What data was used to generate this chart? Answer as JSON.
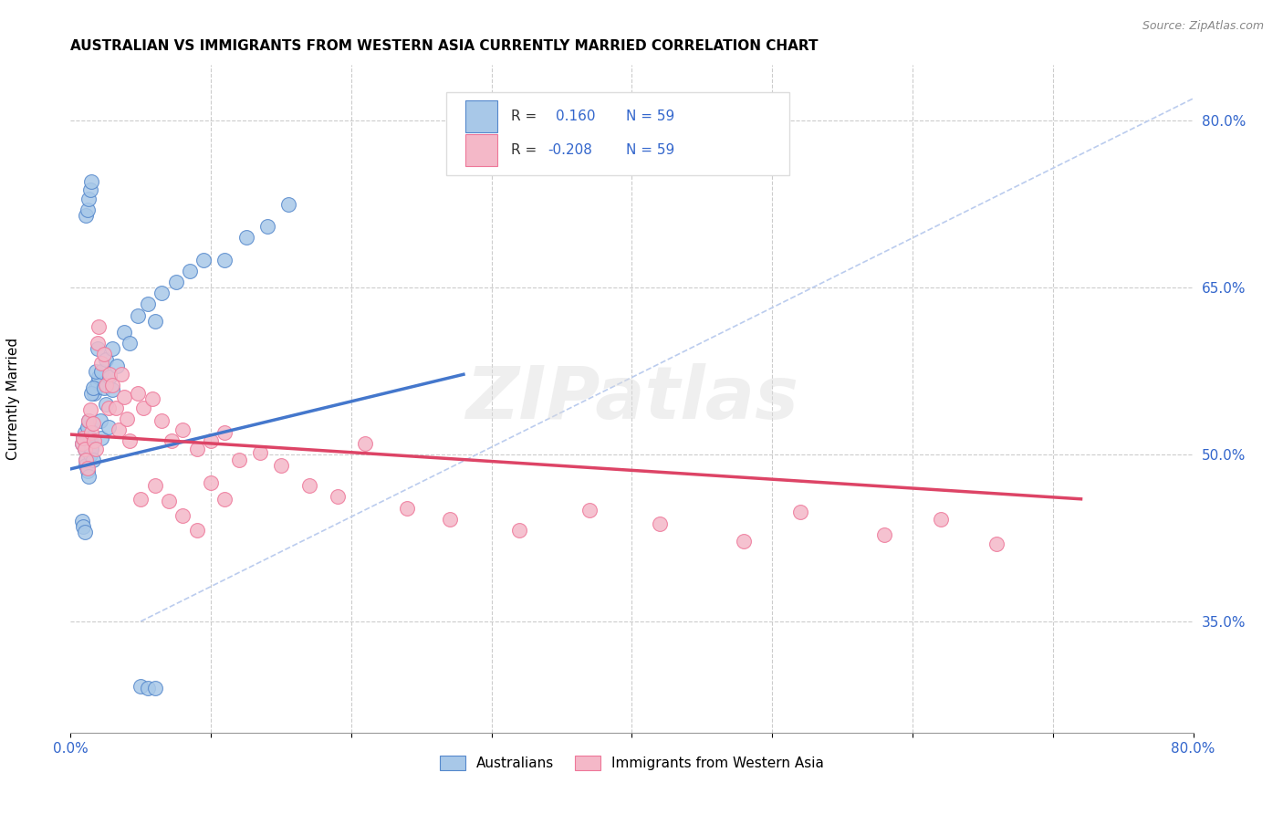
{
  "title": "AUSTRALIAN VS IMMIGRANTS FROM WESTERN ASIA CURRENTLY MARRIED CORRELATION CHART",
  "source": "Source: ZipAtlas.com",
  "ylabel": "Currently Married",
  "r_blue": 0.16,
  "r_pink": -0.208,
  "n": 59,
  "xlim": [
    0.0,
    0.8
  ],
  "ylim": [
    0.25,
    0.85
  ],
  "yticks": [
    0.35,
    0.5,
    0.65,
    0.8
  ],
  "xticks": [
    0.0,
    0.1,
    0.2,
    0.3,
    0.4,
    0.5,
    0.6,
    0.7,
    0.8
  ],
  "color_blue_fill": "#A8C8E8",
  "color_blue_edge": "#5588CC",
  "color_pink_fill": "#F4B8C8",
  "color_pink_edge": "#EE7799",
  "color_line_blue": "#4477CC",
  "color_line_pink": "#DD4466",
  "color_diag": "#BBCCEE",
  "watermark": "ZIPatlas",
  "legend_label_blue": "Australians",
  "legend_label_pink": "Immigrants from Western Asia",
  "blue_x": [
    0.008,
    0.009,
    0.01,
    0.01,
    0.011,
    0.011,
    0.012,
    0.013,
    0.014,
    0.015,
    0.012,
    0.013,
    0.014,
    0.015,
    0.016,
    0.017,
    0.018,
    0.019,
    0.02,
    0.015,
    0.016,
    0.018,
    0.019,
    0.021,
    0.022,
    0.022,
    0.024,
    0.025,
    0.027,
    0.025,
    0.028,
    0.03,
    0.03,
    0.033,
    0.038,
    0.042,
    0.048,
    0.055,
    0.06,
    0.065,
    0.075,
    0.085,
    0.095,
    0.11,
    0.125,
    0.14,
    0.155,
    0.008,
    0.009,
    0.01,
    0.011,
    0.012,
    0.013,
    0.014,
    0.015,
    0.05,
    0.055,
    0.06
  ],
  "blue_y": [
    0.51,
    0.515,
    0.52,
    0.505,
    0.495,
    0.49,
    0.485,
    0.48,
    0.5,
    0.508,
    0.525,
    0.53,
    0.515,
    0.505,
    0.495,
    0.555,
    0.56,
    0.565,
    0.57,
    0.555,
    0.56,
    0.575,
    0.595,
    0.53,
    0.515,
    0.575,
    0.56,
    0.545,
    0.525,
    0.585,
    0.57,
    0.558,
    0.595,
    0.58,
    0.61,
    0.6,
    0.625,
    0.635,
    0.62,
    0.645,
    0.655,
    0.665,
    0.675,
    0.675,
    0.695,
    0.705,
    0.725,
    0.44,
    0.435,
    0.43,
    0.715,
    0.72,
    0.73,
    0.738,
    0.745,
    0.292,
    0.29,
    0.29
  ],
  "pink_x": [
    0.008,
    0.009,
    0.01,
    0.011,
    0.012,
    0.013,
    0.014,
    0.015,
    0.016,
    0.017,
    0.018,
    0.019,
    0.02,
    0.022,
    0.024,
    0.025,
    0.027,
    0.028,
    0.03,
    0.032,
    0.034,
    0.036,
    0.038,
    0.04,
    0.042,
    0.048,
    0.052,
    0.058,
    0.065,
    0.072,
    0.08,
    0.09,
    0.1,
    0.11,
    0.12,
    0.135,
    0.15,
    0.17,
    0.19,
    0.21,
    0.24,
    0.27,
    0.32,
    0.37,
    0.42,
    0.48,
    0.52,
    0.58,
    0.62,
    0.66,
    0.05,
    0.06,
    0.07,
    0.08,
    0.09,
    0.1,
    0.11
  ],
  "pink_y": [
    0.51,
    0.515,
    0.505,
    0.495,
    0.488,
    0.53,
    0.54,
    0.52,
    0.528,
    0.512,
    0.505,
    0.6,
    0.615,
    0.582,
    0.59,
    0.562,
    0.542,
    0.572,
    0.562,
    0.542,
    0.522,
    0.572,
    0.552,
    0.532,
    0.512,
    0.555,
    0.542,
    0.55,
    0.53,
    0.512,
    0.522,
    0.505,
    0.512,
    0.52,
    0.495,
    0.502,
    0.49,
    0.472,
    0.462,
    0.51,
    0.452,
    0.442,
    0.432,
    0.45,
    0.438,
    0.422,
    0.448,
    0.428,
    0.442,
    0.42,
    0.46,
    0.472,
    0.458,
    0.445,
    0.432,
    0.475,
    0.46
  ],
  "blue_line_x": [
    0.0,
    0.28
  ],
  "blue_line_y": [
    0.487,
    0.572
  ],
  "pink_line_x": [
    0.0,
    0.72
  ],
  "pink_line_y": [
    0.518,
    0.46
  ],
  "diag_line_x": [
    0.05,
    0.8
  ],
  "diag_line_y": [
    0.35,
    0.82
  ]
}
